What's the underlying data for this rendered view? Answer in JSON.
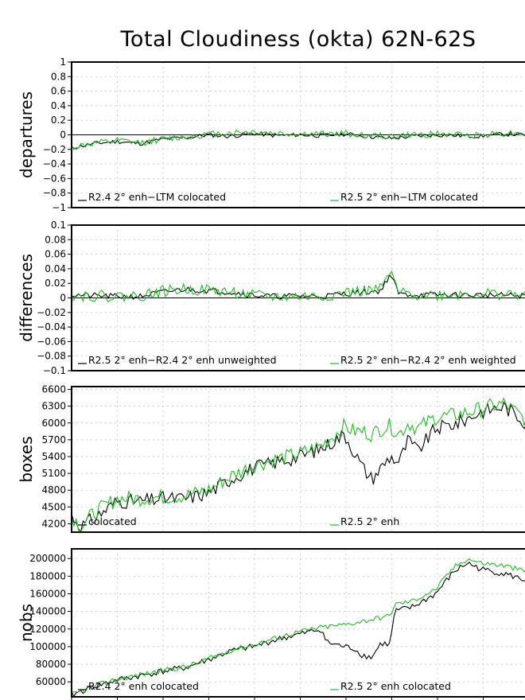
{
  "title": "Total Cloudiness (okta) 62N-62S",
  "colors": {
    "black_series": "#000000",
    "green_series": "#1fbf1f",
    "grid": "#bbbbbb",
    "frame": "#000000"
  },
  "chart_data": [
    {
      "type": "line",
      "ylabel": "departures",
      "ylim": [
        -1,
        1
      ],
      "yticks": [
        "1",
        "0.8",
        "0.6",
        "0.4",
        "0.2",
        "0",
        "−0.2",
        "−0.4",
        "−0.6",
        "−0.8",
        "−1"
      ],
      "ytick_values": [
        1,
        0.8,
        0.6,
        0.4,
        0.2,
        0,
        -0.2,
        -0.4,
        -0.6,
        -0.8,
        -1
      ],
      "zero_line": true,
      "grid": true,
      "legend": [
        "R2.4 2° enh−LTM colocated",
        "R2.5 2° enh−LTM colocated"
      ],
      "series": [
        {
          "name": "R2.4 2° enh−LTM colocated",
          "color": "black",
          "anchors": [
            [
              0,
              -0.18
            ],
            [
              0.05,
              -0.12
            ],
            [
              0.1,
              -0.09
            ],
            [
              0.15,
              -0.12
            ],
            [
              0.2,
              -0.06
            ],
            [
              0.25,
              -0.04
            ],
            [
              0.3,
              0
            ],
            [
              0.35,
              -0.02
            ],
            [
              0.4,
              0.02
            ],
            [
              0.45,
              -0.01
            ],
            [
              0.5,
              0
            ],
            [
              0.55,
              -0.01
            ],
            [
              0.6,
              0.01
            ],
            [
              0.65,
              -0.02
            ],
            [
              0.7,
              -0.05
            ],
            [
              0.75,
              -0.02
            ],
            [
              0.8,
              0
            ],
            [
              0.85,
              -0.01
            ],
            [
              0.9,
              -0.02
            ],
            [
              0.95,
              0.01
            ],
            [
              1,
              0
            ]
          ],
          "noise": 0.03,
          "seed": 11
        },
        {
          "name": "R2.5 2° enh−LTM colocated",
          "color": "green",
          "anchors": [
            [
              0,
              -0.17
            ],
            [
              0.05,
              -0.12
            ],
            [
              0.1,
              -0.08
            ],
            [
              0.15,
              -0.11
            ],
            [
              0.2,
              -0.06
            ],
            [
              0.25,
              -0.03
            ],
            [
              0.3,
              0.01
            ],
            [
              0.35,
              0.03
            ],
            [
              0.4,
              0.04
            ],
            [
              0.45,
              0.02
            ],
            [
              0.5,
              0.01
            ],
            [
              0.55,
              0.01
            ],
            [
              0.6,
              0.02
            ],
            [
              0.65,
              -0.01
            ],
            [
              0.7,
              -0.02
            ],
            [
              0.75,
              0
            ],
            [
              0.8,
              0.01
            ],
            [
              0.85,
              0
            ],
            [
              0.9,
              0
            ],
            [
              0.95,
              0.03
            ],
            [
              1,
              0.02
            ]
          ],
          "noise": 0.045,
          "seed": 12
        }
      ]
    },
    {
      "type": "line",
      "ylabel": "differences",
      "ylim": [
        -0.1,
        0.1
      ],
      "yticks": [
        "0.1",
        "0.08",
        "0.06",
        "0.04",
        "0.02",
        "0",
        "−0.02",
        "−0.04",
        "−0.06",
        "−0.08",
        "−0.1"
      ],
      "ytick_values": [
        0.1,
        0.08,
        0.06,
        0.04,
        0.02,
        0,
        -0.02,
        -0.04,
        -0.06,
        -0.08,
        -0.1
      ],
      "zero_line": true,
      "grid": true,
      "legend": [
        "R2.5 2° enh−R2.4 2° enh unweighted",
        "R2.5 2° enh−R2.4 2° enh weighted"
      ],
      "series": [
        {
          "name": "R2.5 2° enh−R2.4 2° enh unweighted",
          "color": "black",
          "anchors": [
            [
              0,
              0.004
            ],
            [
              0.1,
              0.002
            ],
            [
              0.15,
              0.002
            ],
            [
              0.2,
              0.008
            ],
            [
              0.25,
              0.012
            ],
            [
              0.3,
              0.01
            ],
            [
              0.35,
              0.008
            ],
            [
              0.4,
              0.004
            ],
            [
              0.45,
              0.002
            ],
            [
              0.5,
              0.003
            ],
            [
              0.55,
              0.002
            ],
            [
              0.6,
              0.006
            ],
            [
              0.65,
              0.008
            ],
            [
              0.68,
              0.01
            ],
            [
              0.7,
              0.033
            ],
            [
              0.72,
              0.005
            ],
            [
              0.8,
              0.004
            ],
            [
              0.9,
              0.004
            ],
            [
              1,
              0.003
            ]
          ],
          "noise": 0.004,
          "seed": 21
        },
        {
          "name": "R2.5 2° enh−R2.4 2° enh weighted",
          "color": "green",
          "anchors": [
            [
              0,
              0.004
            ],
            [
              0.1,
              0.002
            ],
            [
              0.15,
              0.003
            ],
            [
              0.2,
              0.009
            ],
            [
              0.25,
              0.012
            ],
            [
              0.3,
              0.011
            ],
            [
              0.35,
              0.008
            ],
            [
              0.4,
              0.003
            ],
            [
              0.45,
              0.001
            ],
            [
              0.5,
              0.002
            ],
            [
              0.55,
              0.002
            ],
            [
              0.6,
              0.007
            ],
            [
              0.65,
              0.01
            ],
            [
              0.68,
              0.012
            ],
            [
              0.7,
              0.035
            ],
            [
              0.72,
              0.006
            ],
            [
              0.8,
              0.004
            ],
            [
              0.9,
              0.006
            ],
            [
              1,
              0.004
            ]
          ],
          "noise": 0.008,
          "seed": 22
        }
      ]
    },
    {
      "type": "line",
      "ylabel": "boxes",
      "ylim": [
        4050,
        6650
      ],
      "yticks": [
        "6600",
        "6300",
        "6000",
        "5700",
        "5400",
        "5100",
        "4800",
        "4500",
        "4200"
      ],
      "ytick_values": [
        6600,
        6300,
        6000,
        5700,
        5400,
        5100,
        4800,
        4500,
        4200
      ],
      "zero_line": false,
      "grid": true,
      "legend": [
        "colocated",
        "R2.5 2° enh"
      ],
      "series": [
        {
          "name": "colocated",
          "color": "black",
          "anchors": [
            [
              0,
              4350
            ],
            [
              0.02,
              4150
            ],
            [
              0.05,
              4300
            ],
            [
              0.1,
              4600
            ],
            [
              0.15,
              4600
            ],
            [
              0.2,
              4650
            ],
            [
              0.25,
              4650
            ],
            [
              0.3,
              4750
            ],
            [
              0.35,
              5000
            ],
            [
              0.4,
              5200
            ],
            [
              0.45,
              5300
            ],
            [
              0.5,
              5400
            ],
            [
              0.55,
              5550
            ],
            [
              0.58,
              5700
            ],
            [
              0.6,
              5800
            ],
            [
              0.62,
              5500
            ],
            [
              0.64,
              5200
            ],
            [
              0.66,
              5000
            ],
            [
              0.68,
              5200
            ],
            [
              0.7,
              5400
            ],
            [
              0.72,
              5300
            ],
            [
              0.74,
              5700
            ],
            [
              0.76,
              5500
            ],
            [
              0.8,
              5900
            ],
            [
              0.85,
              6000
            ],
            [
              0.9,
              6200
            ],
            [
              0.95,
              6300
            ],
            [
              1,
              6000
            ]
          ],
          "noise": 130,
          "seed": 31
        },
        {
          "name": "R2.5 2° enh",
          "color": "green",
          "anchors": [
            [
              0,
              4350
            ],
            [
              0.02,
              4150
            ],
            [
              0.05,
              4400
            ],
            [
              0.1,
              4650
            ],
            [
              0.15,
              4650
            ],
            [
              0.2,
              4680
            ],
            [
              0.25,
              4700
            ],
            [
              0.3,
              4800
            ],
            [
              0.35,
              5050
            ],
            [
              0.4,
              5250
            ],
            [
              0.45,
              5350
            ],
            [
              0.5,
              5450
            ],
            [
              0.55,
              5600
            ],
            [
              0.58,
              5800
            ],
            [
              0.6,
              5950
            ],
            [
              0.62,
              5850
            ],
            [
              0.64,
              5850
            ],
            [
              0.66,
              5800
            ],
            [
              0.68,
              5900
            ],
            [
              0.7,
              5950
            ],
            [
              0.72,
              5800
            ],
            [
              0.74,
              6000
            ],
            [
              0.76,
              5900
            ],
            [
              0.8,
              6100
            ],
            [
              0.85,
              6150
            ],
            [
              0.9,
              6250
            ],
            [
              0.95,
              6350
            ],
            [
              1,
              6050
            ]
          ],
          "noise": 140,
          "seed": 32
        }
      ]
    },
    {
      "type": "line",
      "ylabel": "nobs",
      "ylim": [
        43000,
        211000
      ],
      "yticks": [
        "200000",
        "180000",
        "160000",
        "140000",
        "120000",
        "100000",
        "80000",
        "60000"
      ],
      "ytick_values": [
        200000,
        180000,
        160000,
        140000,
        120000,
        100000,
        80000,
        60000
      ],
      "zero_line": false,
      "grid": true,
      "legend": [
        "R2.4 2° enh colocated",
        "R2.5 2° enh colocated"
      ],
      "series": [
        {
          "name": "R2.4 2° enh colocated",
          "color": "black",
          "anchors": [
            [
              0,
              45000
            ],
            [
              0.05,
              55000
            ],
            [
              0.1,
              62000
            ],
            [
              0.2,
              72000
            ],
            [
              0.25,
              76000
            ],
            [
              0.3,
              85000
            ],
            [
              0.35,
              95000
            ],
            [
              0.4,
              100000
            ],
            [
              0.45,
              108000
            ],
            [
              0.5,
              114000
            ],
            [
              0.55,
              120000
            ],
            [
              0.56,
              105000
            ],
            [
              0.6,
              100000
            ],
            [
              0.62,
              98000
            ],
            [
              0.64,
              90000
            ],
            [
              0.66,
              88000
            ],
            [
              0.68,
              104000
            ],
            [
              0.7,
              102000
            ],
            [
              0.71,
              140000
            ],
            [
              0.75,
              145000
            ],
            [
              0.8,
              160000
            ],
            [
              0.84,
              185000
            ],
            [
              0.87,
              195000
            ],
            [
              0.9,
              188000
            ],
            [
              0.95,
              183000
            ],
            [
              1,
              175000
            ]
          ],
          "noise": 3500,
          "seed": 41
        },
        {
          "name": "R2.5 2° enh colocated",
          "color": "green",
          "anchors": [
            [
              0,
              45000
            ],
            [
              0.05,
              55000
            ],
            [
              0.1,
              63000
            ],
            [
              0.2,
              73000
            ],
            [
              0.25,
              77000
            ],
            [
              0.3,
              86000
            ],
            [
              0.35,
              96000
            ],
            [
              0.4,
              102000
            ],
            [
              0.45,
              110000
            ],
            [
              0.5,
              117000
            ],
            [
              0.55,
              122000
            ],
            [
              0.6,
              125000
            ],
            [
              0.65,
              130000
            ],
            [
              0.7,
              135000
            ],
            [
              0.71,
              148000
            ],
            [
              0.75,
              152000
            ],
            [
              0.8,
              165000
            ],
            [
              0.84,
              190000
            ],
            [
              0.87,
              200000
            ],
            [
              0.9,
              195000
            ],
            [
              0.95,
              192000
            ],
            [
              1,
              185000
            ]
          ],
          "noise": 3000,
          "seed": 42
        }
      ]
    }
  ]
}
